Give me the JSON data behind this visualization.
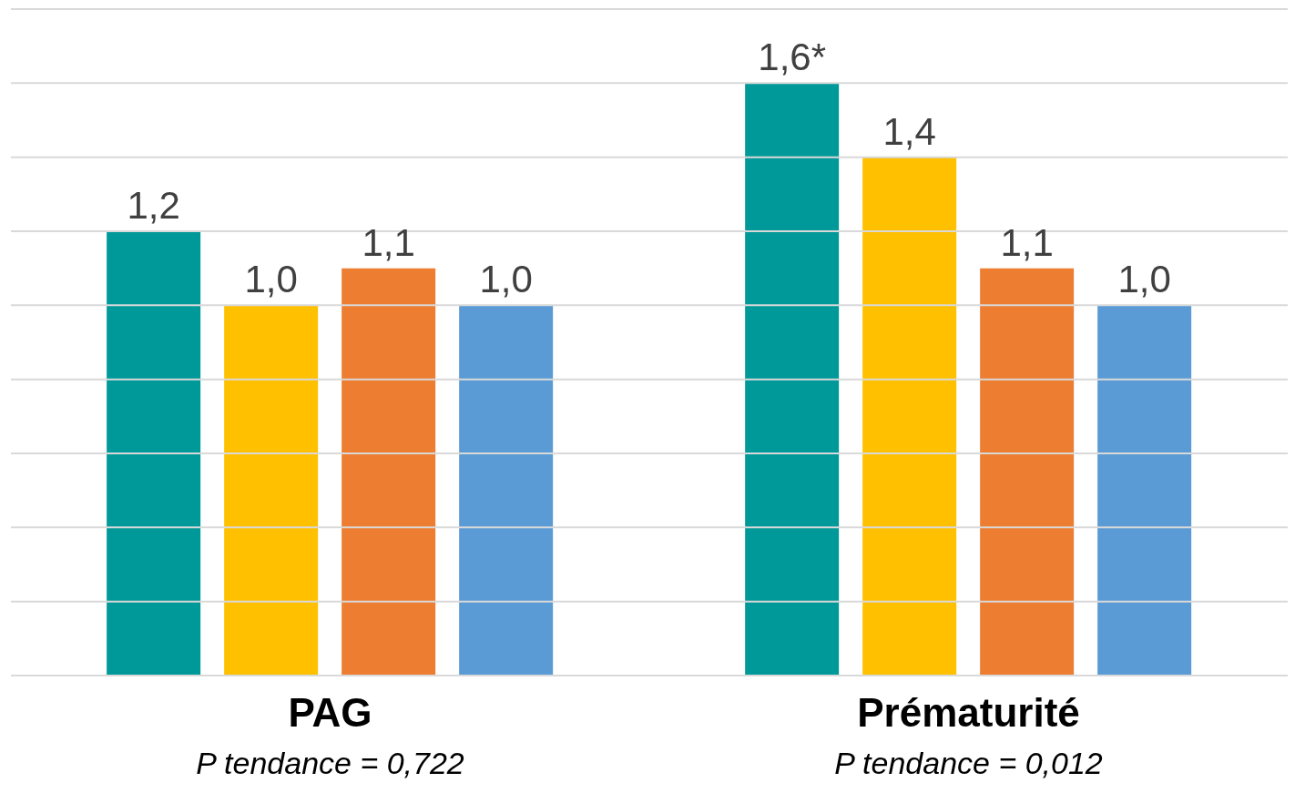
{
  "chart_data": {
    "type": "bar",
    "categories": [
      "PAG",
      "Prématurité"
    ],
    "series": [
      {
        "color": "#009999",
        "values": [
          1.2,
          1.6
        ],
        "value_labels": [
          "1,2",
          "1,6*"
        ]
      },
      {
        "color": "#ffc000",
        "values": [
          1.0,
          1.4
        ],
        "value_labels": [
          "1,0",
          "1,4"
        ]
      },
      {
        "color": "#ed7d31",
        "values": [
          1.1,
          1.1
        ],
        "value_labels": [
          "1,1",
          "1,1"
        ]
      },
      {
        "color": "#5b9bd5",
        "values": [
          1.0,
          1.0
        ],
        "value_labels": [
          "1,0",
          "1,0"
        ]
      }
    ],
    "annotations": [
      "P tendance = 0,722",
      "P tendance = 0,012"
    ],
    "ylim": [
      0,
      1.8
    ],
    "yticks": [
      {
        "value": 0,
        "label": null
      },
      {
        "value": 0.2,
        "label": null
      },
      {
        "value": 0.4,
        "label": null
      },
      {
        "value": 0.6,
        "label": null
      },
      {
        "value": 0.8,
        "label": null
      },
      {
        "value": 1,
        "label": null
      },
      {
        "value": 1.2,
        "label": null
      },
      {
        "value": 1.4,
        "label": null
      },
      {
        "value": 1.6,
        "label": null
      },
      {
        "value": 1.8,
        "label": null
      }
    ],
    "grid": "y",
    "tick_labels": "x",
    "legend": false
  }
}
